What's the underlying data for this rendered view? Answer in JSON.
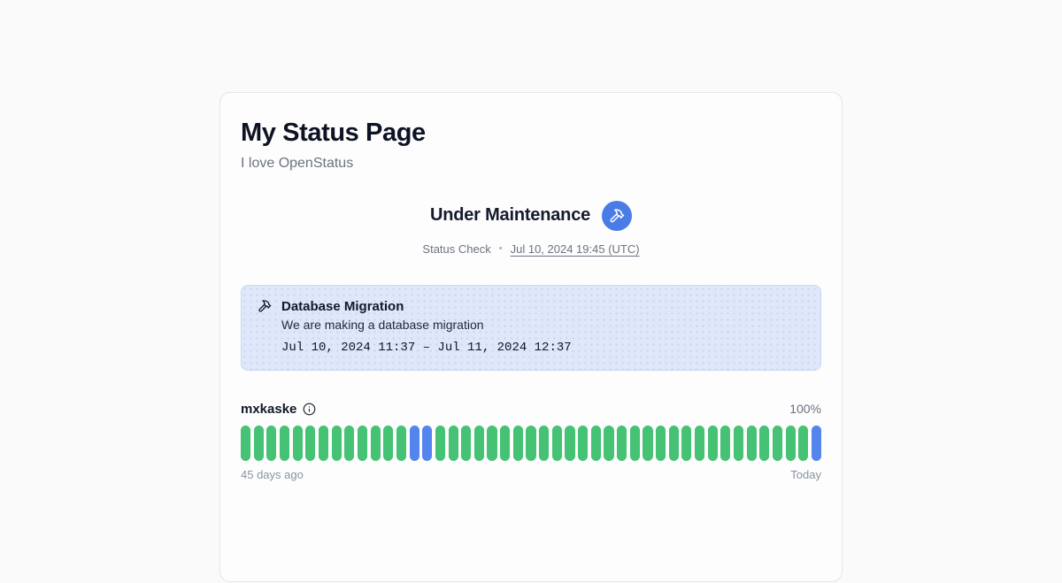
{
  "page": {
    "title": "My Status Page",
    "subtitle": "I love OpenStatus"
  },
  "status": {
    "heading": "Under Maintenance",
    "badge_icon": "hammer-icon",
    "check_label": "Status Check",
    "separator": "•",
    "timestamp": "Jul 10, 2024 19:45 (UTC)"
  },
  "maintenance": {
    "icon": "hammer-icon",
    "title": "Database Migration",
    "description": "We are making a database migration",
    "date_range": "Jul 10, 2024 11:37 – Jul 11, 2024 12:37"
  },
  "monitor": {
    "name": "mxkaske",
    "info_icon": "info-icon",
    "uptime": "100%",
    "start_label": "45 days ago",
    "end_label": "Today",
    "days": 45,
    "statuses": [
      "operational",
      "operational",
      "operational",
      "operational",
      "operational",
      "operational",
      "operational",
      "operational",
      "operational",
      "operational",
      "operational",
      "operational",
      "operational",
      "maintenance",
      "maintenance",
      "operational",
      "operational",
      "operational",
      "operational",
      "operational",
      "operational",
      "operational",
      "operational",
      "operational",
      "operational",
      "operational",
      "operational",
      "operational",
      "operational",
      "operational",
      "operational",
      "operational",
      "operational",
      "operational",
      "operational",
      "operational",
      "operational",
      "operational",
      "operational",
      "operational",
      "operational",
      "operational",
      "operational",
      "operational",
      "maintenance"
    ]
  },
  "colors": {
    "operational": "#45c273",
    "maintenance": "#5485ee",
    "badge_background": "#4a7ce8",
    "page_background": "#fafafa",
    "card_background": "#fdfdfd",
    "maintenance_card_background": "#dfe8fa"
  }
}
